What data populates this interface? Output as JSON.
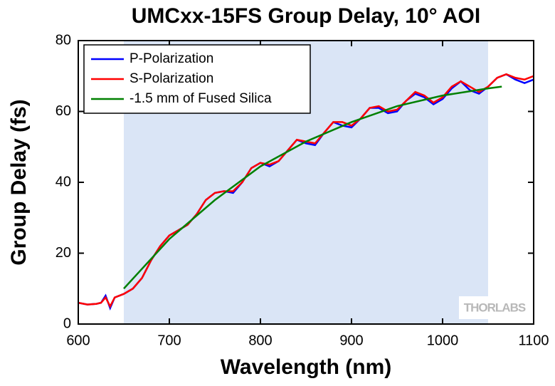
{
  "chart_data": {
    "type": "line",
    "title": "UMCxx-15FS Group Delay, 10° AOI",
    "xlabel": "Wavelength (nm)",
    "ylabel": "Group Delay (fs)",
    "watermark": "THORLABS",
    "shaded_region": [
      650,
      1050
    ],
    "shaded_color": "#dae5f6",
    "xlim": [
      600,
      1100
    ],
    "xticks": [
      600,
      700,
      800,
      900,
      1000,
      1100
    ],
    "ylim": [
      0,
      80
    ],
    "yticks": [
      0,
      20,
      40,
      60,
      80
    ],
    "legend": "upper left",
    "series": [
      {
        "name": "P-Polarization",
        "color": "#0000ff",
        "x": [
          600,
          610,
          620,
          625,
          630,
          635,
          640,
          650,
          660,
          670,
          680,
          690,
          700,
          710,
          720,
          730,
          740,
          750,
          760,
          770,
          780,
          790,
          800,
          810,
          820,
          830,
          840,
          850,
          860,
          870,
          880,
          890,
          900,
          910,
          920,
          930,
          940,
          950,
          960,
          970,
          980,
          990,
          1000,
          1010,
          1020,
          1030,
          1040,
          1050,
          1060,
          1070,
          1080,
          1090,
          1100
        ],
        "values": [
          6,
          5.5,
          5.7,
          6,
          8,
          4.5,
          7.5,
          8.5,
          10,
          13,
          18,
          22,
          25,
          26.5,
          28,
          31,
          35,
          37,
          37.5,
          37,
          40,
          44,
          45.5,
          44.5,
          46,
          49,
          52,
          51,
          50.5,
          54,
          57,
          56,
          55.5,
          58,
          61,
          61,
          59.5,
          60,
          63,
          65,
          64,
          62,
          63.5,
          66.5,
          68.5,
          66,
          65,
          67,
          69.5,
          70.5,
          69,
          68,
          69
        ]
      },
      {
        "name": "S-Polarization",
        "color": "#ff0000",
        "x": [
          600,
          610,
          620,
          625,
          630,
          635,
          640,
          650,
          660,
          670,
          680,
          690,
          700,
          710,
          720,
          730,
          740,
          750,
          760,
          770,
          780,
          790,
          800,
          810,
          820,
          830,
          840,
          850,
          860,
          870,
          880,
          890,
          900,
          910,
          920,
          930,
          940,
          950,
          960,
          970,
          980,
          990,
          1000,
          1010,
          1020,
          1030,
          1040,
          1050,
          1060,
          1070,
          1080,
          1090,
          1100
        ],
        "values": [
          6,
          5.5,
          5.7,
          6,
          7.5,
          5,
          7.5,
          8.5,
          10,
          13,
          18,
          22,
          25,
          26.5,
          28,
          31,
          35,
          37,
          37.5,
          37.5,
          40,
          44,
          45.5,
          45,
          46,
          49,
          52,
          51.5,
          51,
          54,
          57,
          57,
          56,
          58,
          61,
          61.5,
          60,
          60.5,
          63,
          65.5,
          64.5,
          62.5,
          64,
          67,
          68.5,
          67,
          65.5,
          67,
          69.5,
          70.5,
          69.5,
          69,
          70
        ]
      },
      {
        "name": "-1.5 mm of Fused Silica",
        "color": "#008000",
        "x": [
          650,
          700,
          750,
          800,
          850,
          900,
          950,
          1000,
          1050,
          1065
        ],
        "values": [
          10,
          24,
          35,
          44.5,
          51.5,
          57,
          61.5,
          64.5,
          66.5,
          67
        ]
      }
    ]
  }
}
